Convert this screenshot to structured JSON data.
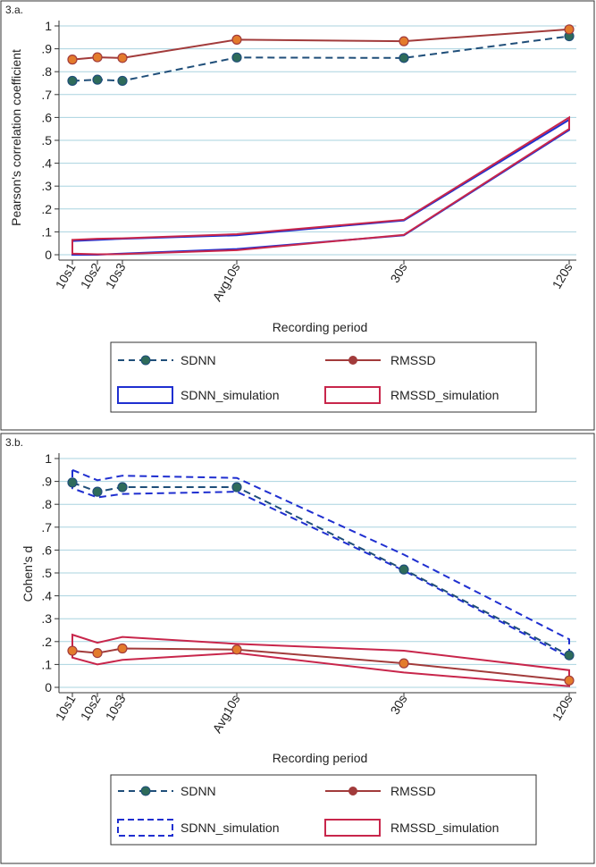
{
  "chart_data": [
    {
      "panel": "3.a.",
      "type": "line",
      "ylabel": "Pearson's correlation coefficient",
      "xlabel": "Recording period",
      "ylim": [
        0,
        1
      ],
      "yticks": [
        0,
        0.1,
        0.2,
        0.3,
        0.4,
        0.5,
        0.6,
        0.7,
        0.8,
        0.9,
        1.0
      ],
      "ytick_labels": [
        "0",
        ".1",
        ".2",
        ".3",
        ".4",
        ".5",
        ".6",
        ".7",
        ".8",
        ".9",
        "1"
      ],
      "categories": [
        "10s1",
        "10s2",
        "10s3",
        "Avg10s",
        "30s",
        "120s"
      ],
      "x": [
        10,
        20,
        30,
        60,
        150,
        240
      ],
      "series": [
        {
          "name": "SDNN",
          "values": [
            0.76,
            0.765,
            0.76,
            0.862,
            0.86,
            0.955
          ]
        },
        {
          "name": "RMSSD",
          "values": [
            0.853,
            0.863,
            0.86,
            0.94,
            0.933,
            0.985
          ]
        }
      ],
      "bands": [
        {
          "name": "SDNN_simulation",
          "upper": [
            0.06,
            0.065,
            0.07,
            0.085,
            0.15,
            0.59
          ],
          "lower": [
            0.0,
            0.0,
            0.005,
            0.025,
            0.085,
            0.545
          ]
        },
        {
          "name": "RMSSD_simulation",
          "upper": [
            0.065,
            0.07,
            0.072,
            0.09,
            0.153,
            0.6
          ],
          "lower": [
            0.005,
            0.002,
            0.003,
            0.02,
            0.087,
            0.55
          ]
        }
      ],
      "legend": [
        "SDNN",
        "RMSSD",
        "SDNN_simulation",
        "RMSSD_simulation"
      ]
    },
    {
      "panel": "3.b.",
      "type": "line",
      "ylabel": "Cohen's d",
      "xlabel": "Recording period",
      "ylim": [
        0,
        1
      ],
      "yticks": [
        0,
        0.1,
        0.2,
        0.3,
        0.4,
        0.5,
        0.6,
        0.7,
        0.8,
        0.9,
        1.0
      ],
      "ytick_labels": [
        "0",
        ".1",
        ".2",
        ".3",
        ".4",
        ".5",
        ".6",
        ".7",
        ".8",
        ".9",
        "1"
      ],
      "categories": [
        "10s1",
        "10s2",
        "10s3",
        "Avg10s",
        "30s",
        "120s"
      ],
      "x": [
        10,
        20,
        30,
        60,
        150,
        240
      ],
      "series": [
        {
          "name": "SDNN",
          "values": [
            0.895,
            0.855,
            0.875,
            0.875,
            0.515,
            0.14
          ]
        },
        {
          "name": "RMSSD",
          "values": [
            0.16,
            0.15,
            0.17,
            0.165,
            0.105,
            0.03
          ]
        }
      ],
      "bands": [
        {
          "name": "SDNN_simulation",
          "upper": [
            0.95,
            0.905,
            0.925,
            0.915,
            0.58,
            0.21
          ],
          "lower": [
            0.87,
            0.83,
            0.845,
            0.855,
            0.51,
            0.13
          ]
        },
        {
          "name": "RMSSD_simulation",
          "upper": [
            0.23,
            0.195,
            0.22,
            0.19,
            0.16,
            0.075
          ],
          "lower": [
            0.13,
            0.1,
            0.12,
            0.15,
            0.065,
            0.005
          ]
        }
      ],
      "legend": [
        "SDNN",
        "RMSSD",
        "SDNN_simulation",
        "RMSSD_simulation"
      ]
    }
  ],
  "colors": {
    "sdnn_line": "#1f4e79",
    "sdnn_marker_fill": "#2e6b5a",
    "rmssd_line": "#a23b3b",
    "rmssd_marker_fill": "#e37b2c",
    "sdnn_band": "#1f2fd0",
    "rmssd_band": "#c8264b",
    "grid": "#a9d3df"
  }
}
